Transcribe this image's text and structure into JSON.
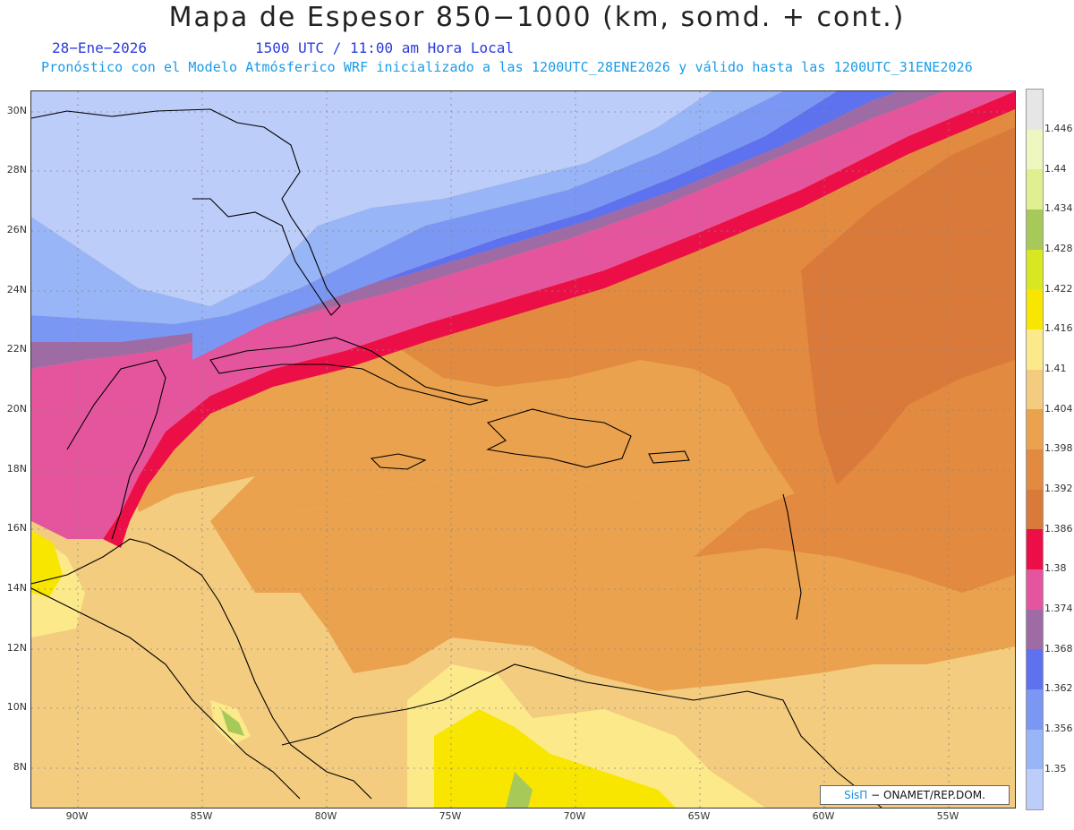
{
  "header": {
    "title": "Mapa de Espesor 850−1000 (km, somd. + cont.)",
    "date": "28−Ene−2026",
    "time": "1500 UTC / 11:00 am Hora Local",
    "model_line": "Pronóstico con el Modelo Atmósferico WRF inicializado a las 1200UTC_28ENE2026 y válido hasta las  1200UTC_31ENE2026"
  },
  "axes": {
    "lat_labels": [
      "30N",
      "28N",
      "26N",
      "24N",
      "22N",
      "20N",
      "18N",
      "16N",
      "14N",
      "12N",
      "10N",
      "8N"
    ],
    "lon_labels": [
      "90W",
      "85W",
      "80W",
      "75W",
      "70W",
      "65W",
      "60W",
      "55W"
    ]
  },
  "colorbar": {
    "levels": [
      "1.446",
      "1.44",
      "1.434",
      "1.428",
      "1.422",
      "1.416",
      "1.41",
      "1.404",
      "1.398",
      "1.392",
      "1.386",
      "1.38",
      "1.374",
      "1.368",
      "1.362",
      "1.356",
      "1.35"
    ],
    "colors": [
      "#e6e6e6",
      "#eef7c0",
      "#e0f090",
      "#a6c95a",
      "#d8e820",
      "#f8e600",
      "#fbe98a",
      "#f3cc7f",
      "#eba24e",
      "#e28a3f",
      "#d97a3a",
      "#ec0f47",
      "#e5559d",
      "#9e6ba5",
      "#5e71ef",
      "#7b97f4",
      "#98b5f7",
      "#bccdf9"
    ]
  },
  "credit": {
    "brand": "SisΠ",
    "text": " − ONAMET/REP.DOM."
  }
}
